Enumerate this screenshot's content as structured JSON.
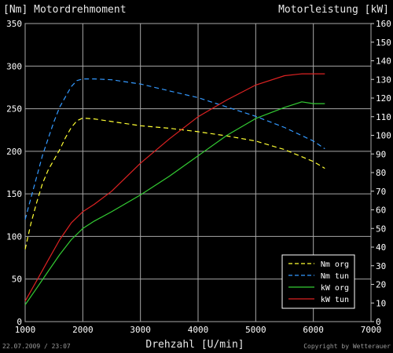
{
  "chart_data": {
    "type": "line",
    "title_left": "[Nm] Motordrehmoment",
    "title_right": "Motorleistung [kW]",
    "xlabel": "Drehzahl [U/min]",
    "xlim": [
      1000,
      7000
    ],
    "x_ticks": [
      1000,
      2000,
      3000,
      4000,
      5000,
      6000,
      7000
    ],
    "ylim_left": [
      0,
      350
    ],
    "y_left_ticks": [
      0,
      50,
      100,
      150,
      200,
      250,
      300,
      350
    ],
    "ylim_right": [
      0,
      160
    ],
    "y_right_ticks": [
      0,
      10,
      20,
      30,
      40,
      50,
      60,
      70,
      80,
      90,
      100,
      110,
      120,
      130,
      140,
      150,
      160
    ],
    "grid": true,
    "legend_position": "bottom-right",
    "series": [
      {
        "name": "Nm org",
        "axis": "left",
        "color": "#ffff33",
        "dash": true,
        "points": [
          [
            1000,
            85
          ],
          [
            1100,
            115
          ],
          [
            1200,
            140
          ],
          [
            1300,
            162
          ],
          [
            1400,
            178
          ],
          [
            1500,
            190
          ],
          [
            1600,
            202
          ],
          [
            1700,
            216
          ],
          [
            1800,
            228
          ],
          [
            1900,
            236
          ],
          [
            2000,
            239
          ],
          [
            2200,
            238
          ],
          [
            2500,
            235
          ],
          [
            3000,
            230
          ],
          [
            3500,
            227
          ],
          [
            4000,
            223
          ],
          [
            4500,
            218
          ],
          [
            5000,
            212
          ],
          [
            5500,
            202
          ],
          [
            6000,
            188
          ],
          [
            6200,
            180
          ]
        ]
      },
      {
        "name": "Nm tun",
        "axis": "left",
        "color": "#3399ff",
        "dash": true,
        "points": [
          [
            1000,
            120
          ],
          [
            1100,
            145
          ],
          [
            1200,
            170
          ],
          [
            1300,
            195
          ],
          [
            1400,
            215
          ],
          [
            1500,
            235
          ],
          [
            1600,
            252
          ],
          [
            1700,
            264
          ],
          [
            1800,
            276
          ],
          [
            1900,
            283
          ],
          [
            2000,
            285
          ],
          [
            2200,
            285
          ],
          [
            2500,
            284
          ],
          [
            3000,
            279
          ],
          [
            3500,
            271
          ],
          [
            4000,
            263
          ],
          [
            4500,
            252
          ],
          [
            5000,
            241
          ],
          [
            5500,
            228
          ],
          [
            6000,
            212
          ],
          [
            6200,
            203
          ]
        ]
      },
      {
        "name": "kW org",
        "axis": "right",
        "color": "#33cc33",
        "dash": false,
        "points": [
          [
            1000,
            9
          ],
          [
            1200,
            18
          ],
          [
            1400,
            27
          ],
          [
            1600,
            36
          ],
          [
            1800,
            44
          ],
          [
            2000,
            50
          ],
          [
            2200,
            54
          ],
          [
            2500,
            59
          ],
          [
            3000,
            68
          ],
          [
            3500,
            78
          ],
          [
            4000,
            89
          ],
          [
            4500,
            100
          ],
          [
            5000,
            109
          ],
          [
            5500,
            115
          ],
          [
            5800,
            118
          ],
          [
            6000,
            117
          ],
          [
            6200,
            117
          ]
        ]
      },
      {
        "name": "kW tun",
        "axis": "right",
        "color": "#dd2222",
        "dash": false,
        "points": [
          [
            1000,
            11
          ],
          [
            1200,
            22
          ],
          [
            1400,
            33
          ],
          [
            1600,
            44
          ],
          [
            1800,
            53
          ],
          [
            2000,
            59
          ],
          [
            2200,
            63
          ],
          [
            2500,
            70
          ],
          [
            3000,
            85
          ],
          [
            3500,
            98
          ],
          [
            4000,
            110
          ],
          [
            4500,
            119
          ],
          [
            5000,
            127
          ],
          [
            5500,
            132
          ],
          [
            5800,
            133
          ],
          [
            6000,
            133
          ],
          [
            6200,
            133
          ]
        ]
      }
    ]
  },
  "footer": {
    "timestamp": "22.07.2009 / 23:07",
    "copyright": "Copyright by Wetterauer"
  }
}
